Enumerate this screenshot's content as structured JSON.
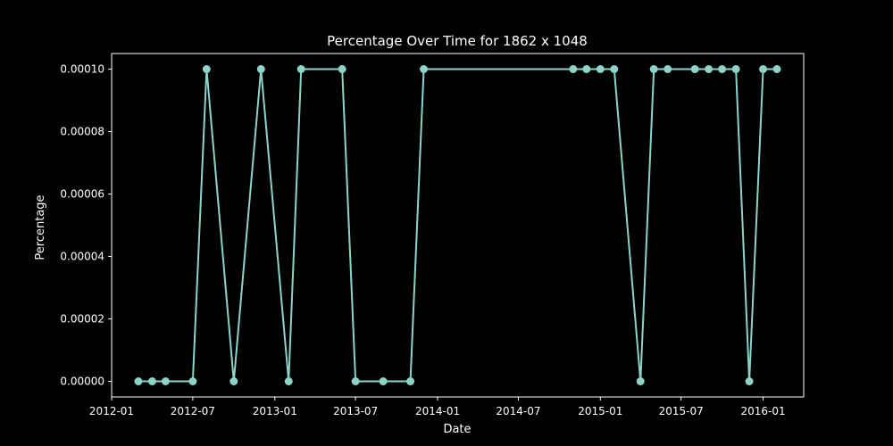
{
  "chart_data": {
    "type": "line",
    "title": "Percentage Over Time for 1862 x 1048",
    "xlabel": "Date",
    "ylabel": "Percentage",
    "xlim": [
      "2012-01-01",
      "2016-04-01"
    ],
    "ylim": [
      -5e-06,
      0.000105
    ],
    "x_ticks": [
      "2012-01",
      "2012-07",
      "2013-01",
      "2013-07",
      "2014-01",
      "2014-07",
      "2015-01",
      "2015-07",
      "2016-01"
    ],
    "y_ticks": [
      "0.00000",
      "0.00002",
      "0.00004",
      "0.00006",
      "0.00008",
      "0.00010"
    ],
    "grid": false,
    "colors": {
      "background": "#000000",
      "line": "#8dd3c7",
      "text": "#ffffff"
    },
    "series": [
      {
        "marker": "circle",
        "x": [
          "2012-03-01",
          "2012-04-01",
          "2012-05-01",
          "2012-07-01",
          "2012-08-01",
          "2012-10-01",
          "2012-12-01",
          "2013-02-01",
          "2013-03-01",
          "2013-06-01",
          "2013-07-01",
          "2013-09-01",
          "2013-11-01",
          "2013-12-01",
          "2014-11-01",
          "2014-12-01",
          "2015-01-01",
          "2015-02-01",
          "2015-04-01",
          "2015-05-01",
          "2015-06-01",
          "2015-08-01",
          "2015-09-01",
          "2015-10-01",
          "2015-11-01",
          "2015-12-01",
          "2016-01-01",
          "2016-02-01"
        ],
        "y": [
          0,
          0,
          0,
          0,
          0.0001,
          0,
          0.0001,
          0,
          0.0001,
          0.0001,
          0,
          0,
          0,
          0.0001,
          0.0001,
          0.0001,
          0.0001,
          0.0001,
          0,
          0.0001,
          0.0001,
          0.0001,
          0.0001,
          0.0001,
          0.0001,
          0,
          0.0001,
          0.0001
        ]
      }
    ]
  }
}
